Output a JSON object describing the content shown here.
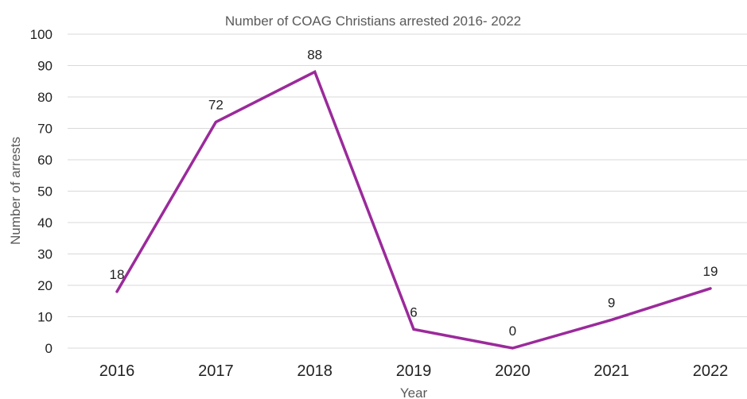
{
  "chart_data": {
    "type": "line",
    "title": "Number of COAG Christians arrested 2016- 2022",
    "xlabel": "Year",
    "ylabel": "Number of arrests",
    "categories": [
      "2016",
      "2017",
      "2018",
      "2019",
      "2020",
      "2021",
      "2022"
    ],
    "series": [
      {
        "values": [
          18,
          72,
          88,
          6,
          0,
          9,
          19
        ],
        "color": "#9b2a9b"
      }
    ],
    "data_labels": [
      "18",
      "72",
      "88",
      "6",
      "0",
      "9",
      "19"
    ],
    "ylim": [
      0,
      100
    ],
    "yticks": [
      "0",
      "10",
      "20",
      "30",
      "40",
      "50",
      "60",
      "70",
      "80",
      "90",
      "100"
    ],
    "grid": true,
    "legend": "none"
  }
}
